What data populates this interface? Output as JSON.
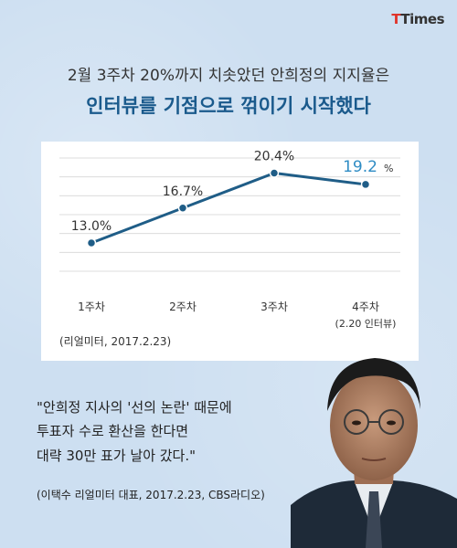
{
  "brand": {
    "logo_t": "T",
    "logo_rest": "Times"
  },
  "headline": {
    "line1": "2월 3주차 20%까지 치솟았던 안희정의 지지율은",
    "line2": "인터뷰를 기점으로 꺾이기 시작했다"
  },
  "chart_data": {
    "type": "line",
    "categories": [
      "1주차",
      "2주차",
      "3주차",
      "4주차"
    ],
    "category_sublabels": [
      "",
      "",
      "",
      "(2.20 인터뷰)"
    ],
    "values": [
      13.0,
      16.7,
      20.4,
      19.2
    ],
    "value_labels": [
      "13.0%",
      "16.7%",
      "20.4%",
      "19.2"
    ],
    "highlight_unit": "%",
    "highlight_index": 3,
    "ylim": [
      10,
      22
    ],
    "grid": true,
    "source": "(리얼미터, 2017.2.23)",
    "colors": {
      "line": "#1f5d87",
      "highlight": "#2f8cc4",
      "grid": "#dcdcdc"
    }
  },
  "quote": {
    "lines": [
      "\"안희정 지사의 '선의 논란' 때문에",
      "투표자 수로 환산을 한다면",
      "대략 30만 표가 날아 갔다.\""
    ],
    "source": "(이택수 리얼미터 대표, 2017.2.23, CBS라디오)"
  },
  "colors": {
    "background": "#cddff1",
    "headline_accent": "#1a5a8c",
    "logo_accent": "#e0342b"
  }
}
